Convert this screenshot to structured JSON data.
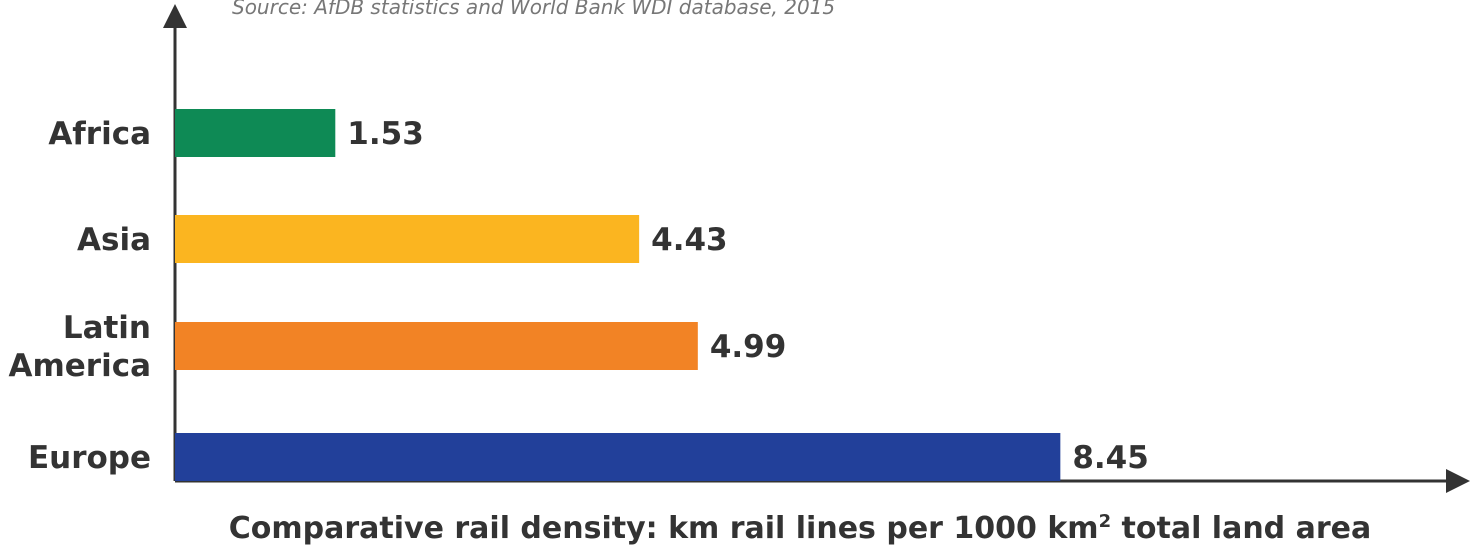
{
  "chart_data": {
    "type": "bar",
    "orientation": "horizontal",
    "source": "Source: AfDB statistics and World Bank WDI database, 2015",
    "categories": [
      [
        "Africa"
      ],
      [
        "Asia"
      ],
      [
        "Latin",
        "America"
      ],
      [
        "Europe"
      ]
    ],
    "values": [
      1.53,
      4.43,
      4.99,
      8.45
    ],
    "value_labels": [
      "1.53",
      "4.43",
      "4.99",
      "8.45"
    ],
    "colors": [
      "#0E8A55",
      "#FBB520",
      "#F28325",
      "#22409A"
    ],
    "xlabel_parts": [
      "Comparative rail density: km rail lines per 1000 km",
      "2",
      " total land area"
    ],
    "xlim": [
      0,
      12.15
    ],
    "grid": false,
    "legend": "none"
  }
}
